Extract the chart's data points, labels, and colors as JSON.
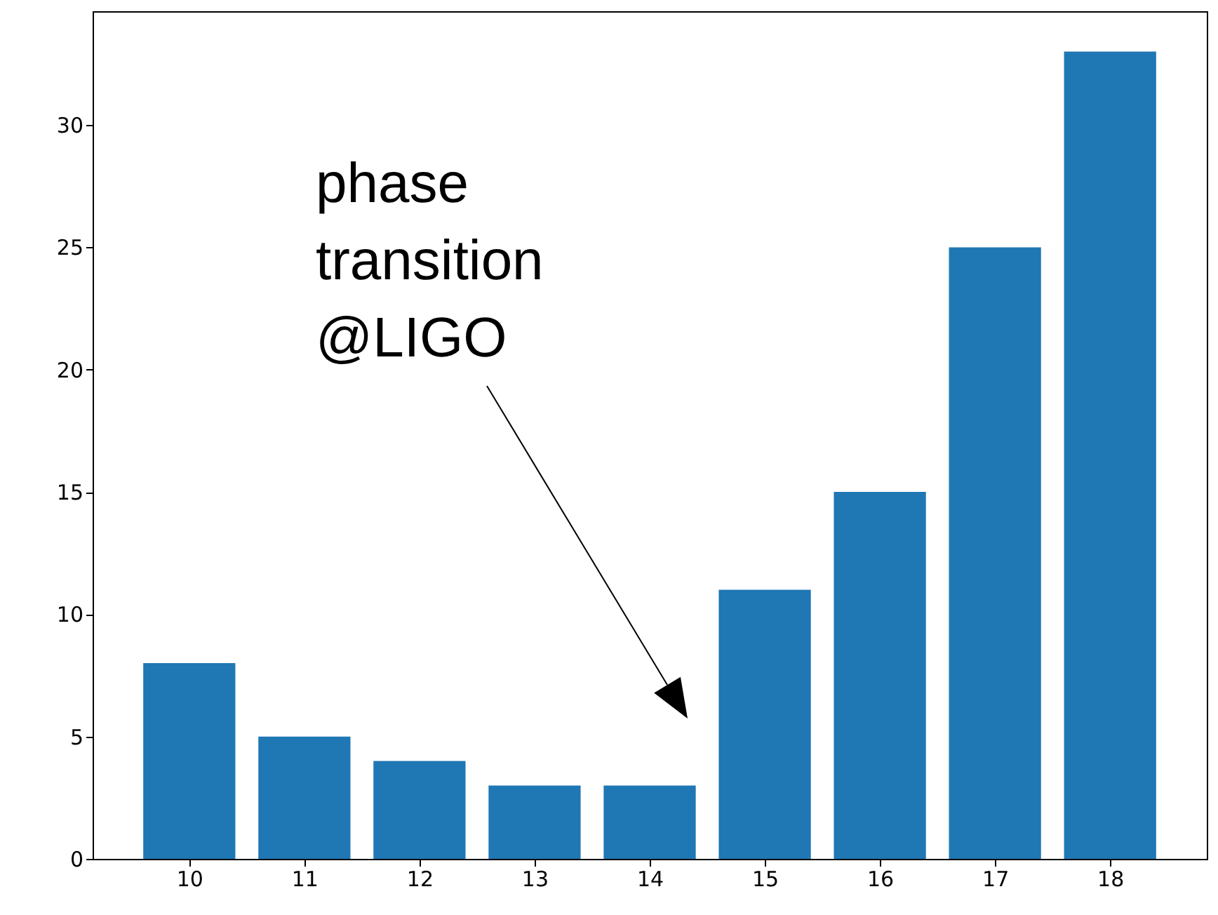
{
  "chart_data": {
    "type": "bar",
    "x": [
      10,
      11,
      12,
      13,
      14,
      15,
      16,
      17,
      18
    ],
    "values": [
      8,
      5,
      4,
      3,
      3,
      11,
      15,
      25,
      33
    ],
    "color": "#1f77b4",
    "xlim": [
      9.16,
      18.84
    ],
    "xticks": [
      10,
      11,
      12,
      13,
      14,
      15,
      16,
      17,
      18
    ],
    "ylim": [
      0,
      34.65
    ],
    "yticks": [
      0,
      5,
      10,
      15,
      20,
      25,
      30
    ],
    "grid": false,
    "annotations": [
      "phase\ntransition\n@LIGO"
    ]
  }
}
